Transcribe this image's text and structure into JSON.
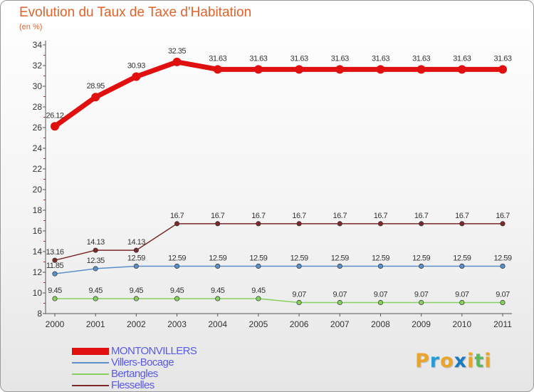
{
  "title": "Evolution du Taux de Taxe d'Habitation",
  "subtitle": "(en %)",
  "logo": {
    "text": "Proxiti",
    "letters": [
      "P",
      "r",
      "o",
      "x",
      "i",
      "t",
      "i"
    ],
    "colors": [
      "#e8a52a",
      "#2b9bd6",
      "#e8a52a",
      "#1a7ac0",
      "#e8a52a",
      "#5cb85c",
      "#e8a52a"
    ]
  },
  "chart_data": {
    "type": "line",
    "title": "Evolution du Taux de Taxe d'Habitation",
    "ylabel": "(en %)",
    "xlabel": "",
    "categories": [
      "2000",
      "2001",
      "2002",
      "2003",
      "2004",
      "2005",
      "2006",
      "2007",
      "2008",
      "2009",
      "2010",
      "2011"
    ],
    "ylim": [
      8,
      34
    ],
    "yticks": [
      8,
      10,
      12,
      14,
      16,
      18,
      20,
      22,
      24,
      26,
      28,
      30,
      32,
      34
    ],
    "grid": false,
    "legend": "bottom-left",
    "series": [
      {
        "name": "MONTONVILLERS",
        "color": "#e01010",
        "labels": [
          "26.12",
          "28.95",
          "30.93",
          "32.35",
          "31.63",
          "31.63",
          "31.63",
          "31.63",
          "31.63",
          "31.63",
          "31.63",
          "31.63"
        ],
        "values": [
          26.12,
          28.95,
          30.93,
          32.35,
          31.63,
          31.63,
          31.63,
          31.63,
          31.63,
          31.63,
          31.63,
          31.63
        ]
      },
      {
        "name": "Villers-Bocage",
        "color": "#5b8fc8",
        "labels": [
          "11.85",
          "12.35",
          "12.59",
          "12.59",
          "12.59",
          "12.59",
          "12.59",
          "12.59",
          "12.59",
          "12.59",
          "12.59",
          "12.59"
        ],
        "values": [
          11.85,
          12.35,
          12.59,
          12.59,
          12.59,
          12.59,
          12.59,
          12.59,
          12.59,
          12.59,
          12.59,
          12.59
        ]
      },
      {
        "name": "Bertangles",
        "color": "#88d060",
        "labels": [
          "9.45",
          "9.45",
          "9.45",
          "9.45",
          "9.45",
          "9.45",
          "9.07",
          "9.07",
          "9.07",
          "9.07",
          "9.07",
          "9.07"
        ],
        "values": [
          9.45,
          9.45,
          9.45,
          9.45,
          9.45,
          9.45,
          9.07,
          9.07,
          9.07,
          9.07,
          9.07,
          9.07
        ]
      },
      {
        "name": "Flesselles",
        "color": "#7a2a2a",
        "labels": [
          "13.16",
          "14.13",
          "14.13",
          "16.7",
          "16.7",
          "16.7",
          "16.7",
          "16.7",
          "16.7",
          "16.7",
          "16.7",
          "16.7"
        ],
        "values": [
          13.16,
          14.13,
          14.13,
          16.7,
          16.7,
          16.7,
          16.7,
          16.7,
          16.7,
          16.7,
          16.7,
          16.7
        ]
      }
    ]
  }
}
